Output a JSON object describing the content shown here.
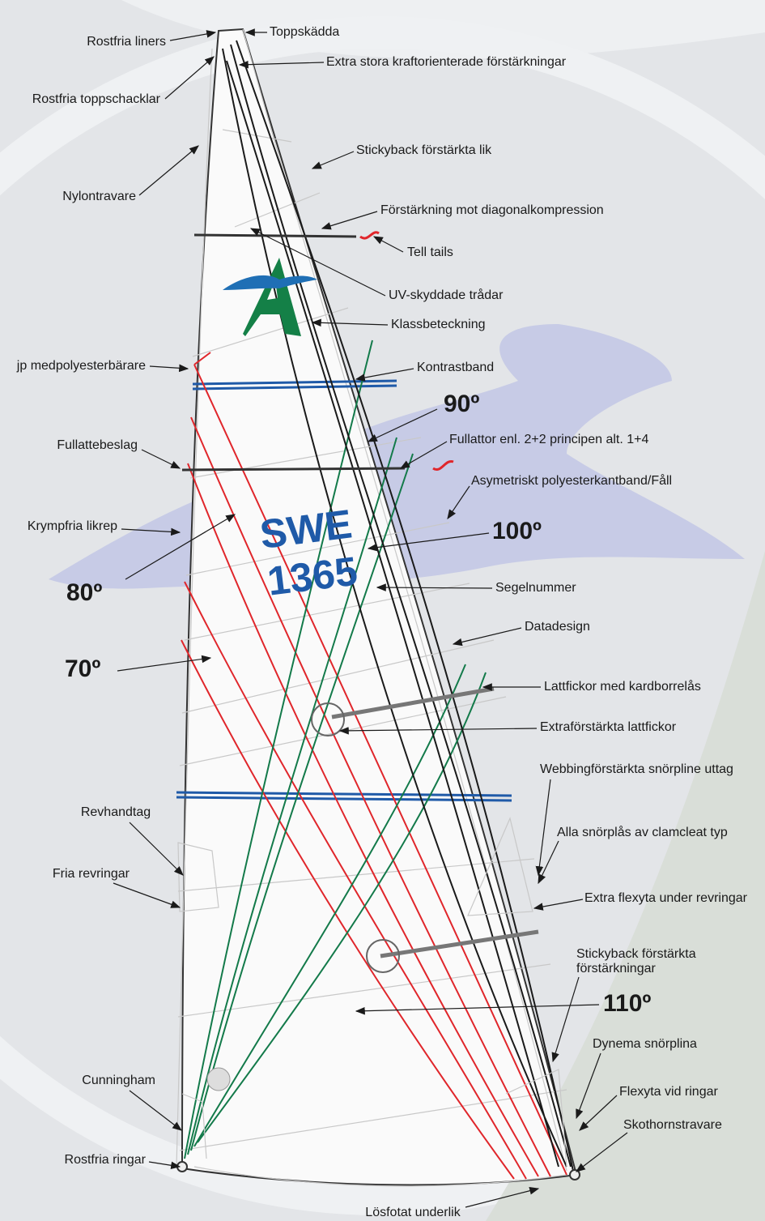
{
  "labels": [
    "Rostfria liners",
    "Toppskädda",
    "Extra stora kraftorienterade förstärkningar",
    "Rostfria toppschacklar",
    "Stickyback förstärkta lik",
    "Nylontravare",
    "Förstärkning mot diagonalkompression",
    "Tell tails",
    "UV-skyddade trådar",
    "Klassbeteckning",
    "jp medpolyesterbärare",
    "Kontrastband",
    "Fullattebeslag",
    "Fullattor enl. 2+2 principen alt. 1+4",
    "Asymetriskt polyesterkantband/Fåll",
    "Krympfria likrep",
    "Segelnummer",
    "Datadesign",
    "Lattfickor med kardborrelås",
    "Extraförstärkta lattfickor",
    "Webbingförstärkta snörpline uttag",
    "Revhandtag",
    "Alla snörplås av clamcleat typ",
    "Fria revringar",
    "Extra flexyta under revringar",
    [
      "Stickyback förstärkta",
      "förstärkningar"
    ],
    "Cunningham",
    "Dynema snörplina",
    "Flexyta vid ringar",
    "Rostfria ringar",
    "Skothornstravare",
    "Lösfotat underlik"
  ],
  "angles": [
    "90º",
    "100º",
    "80º",
    "70º",
    "110º"
  ],
  "sail_number": {
    "letters": "SWE",
    "number": "1365"
  }
}
